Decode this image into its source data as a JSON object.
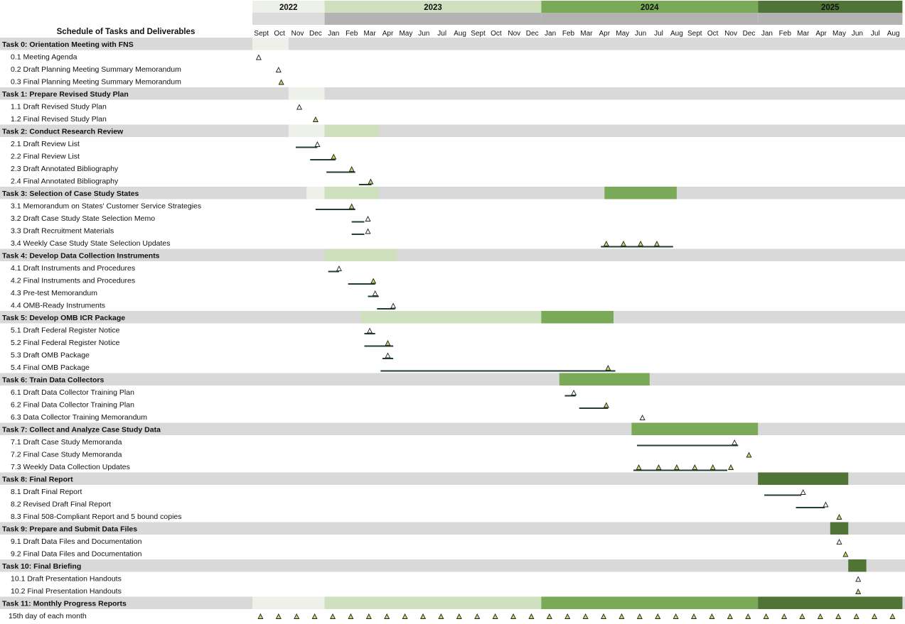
{
  "chart_data": {
    "type": "gantt",
    "title": "Schedule of Tasks and Deliverables",
    "months": [
      "Sept",
      "Oct",
      "Nov",
      "Dec",
      "Jan",
      "Feb",
      "Mar",
      "Apr",
      "May",
      "Jun",
      "Jul",
      "Aug",
      "Sept",
      "Oct",
      "Nov",
      "Dec",
      "Jan",
      "Feb",
      "Mar",
      "Apr",
      "May",
      "Jun",
      "Jul",
      "Aug",
      "Sept",
      "Oct",
      "Nov",
      "Dec",
      "Jan",
      "Feb",
      "Mar",
      "Apr",
      "May",
      "Jun",
      "Jul",
      "Aug"
    ],
    "years": [
      {
        "label": "2022",
        "start": 0,
        "end": 4,
        "color": "#eef1ea"
      },
      {
        "label": "2023",
        "start": 4,
        "end": 16,
        "color": "#cfe0bf"
      },
      {
        "label": "2024",
        "start": 16,
        "end": 28,
        "color": "#7aaa58"
      },
      {
        "label": "2025",
        "start": 28,
        "end": 36,
        "color": "#4f7436"
      }
    ],
    "colors": {
      "row_gray": "#d9d9d9",
      "line": "#1f3d33",
      "milestone_filled": "#c9d66b",
      "milestone_open": "#ffffff"
    },
    "rows": [
      {
        "type": "task",
        "label": "Task 0: Orientation Meeting with FNS",
        "bars": [
          {
            "start": 0,
            "end": 2,
            "year": 0
          }
        ]
      },
      {
        "type": "sub",
        "label": "0.1 Meeting Agenda",
        "milestones": [
          {
            "at": 0.35,
            "filled": false
          }
        ]
      },
      {
        "type": "sub",
        "label": "0.2 Draft Planning Meeting Summary Memorandum",
        "milestones": [
          {
            "at": 1.45,
            "filled": false
          }
        ]
      },
      {
        "type": "sub",
        "label": "0.3 Final Planning Meeting Summary Memorandum",
        "milestones": [
          {
            "at": 1.6,
            "filled": true
          }
        ]
      },
      {
        "type": "task",
        "label": "Task 1: Prepare Revised Study Plan",
        "bars": [
          {
            "start": 2,
            "end": 4,
            "year": 0
          }
        ]
      },
      {
        "type": "sub",
        "label": "1.1 Draft Revised Study Plan",
        "milestones": [
          {
            "at": 2.6,
            "filled": false
          }
        ]
      },
      {
        "type": "sub",
        "label": "1.2 Final Revised Study Plan",
        "milestones": [
          {
            "at": 3.5,
            "filled": true
          }
        ]
      },
      {
        "type": "task",
        "label": "Task 2: Conduct Research Review",
        "bars": [
          {
            "start": 2,
            "end": 4,
            "year": 0
          },
          {
            "start": 4,
            "end": 7,
            "year": 1
          }
        ]
      },
      {
        "type": "sub",
        "label": "2.1 Draft Review List",
        "line": [
          2.4,
          3.6
        ],
        "milestones": [
          {
            "at": 3.6,
            "filled": false
          }
        ]
      },
      {
        "type": "sub",
        "label": "2.2 Final Review List",
        "line": [
          3.2,
          4.6
        ],
        "milestones": [
          {
            "at": 4.5,
            "filled": true
          }
        ]
      },
      {
        "type": "sub",
        "label": "2.3 Draft Annotated Bibliography",
        "line": [
          4.1,
          5.7
        ],
        "milestones": [
          {
            "at": 5.5,
            "filled": true
          }
        ]
      },
      {
        "type": "sub",
        "label": "2.4 Final Annotated Bibliography",
        "line": [
          5.9,
          6.6
        ],
        "milestones": [
          {
            "at": 6.55,
            "filled": true
          }
        ]
      },
      {
        "type": "task",
        "label": "Task 3: Selection of Case Study States",
        "bars": [
          {
            "start": 3,
            "end": 4,
            "year": 0
          },
          {
            "start": 4,
            "end": 7,
            "year": 1
          },
          {
            "start": 19.5,
            "end": 23.5,
            "year": 2
          }
        ]
      },
      {
        "type": "sub",
        "label": "3.1 Memorandum on States' Customer Service Strategies",
        "line": [
          3.5,
          5.7
        ],
        "milestones": [
          {
            "at": 5.5,
            "filled": true
          }
        ]
      },
      {
        "type": "sub",
        "label": "3.2 Draft Case Study State Selection Memo",
        "line": [
          5.5,
          6.2
        ],
        "milestones": [
          {
            "at": 6.4,
            "filled": false
          }
        ]
      },
      {
        "type": "sub",
        "label": "3.3 Draft Recruitment Materials",
        "line": [
          5.5,
          6.2
        ],
        "milestones": [
          {
            "at": 6.4,
            "filled": false
          }
        ]
      },
      {
        "type": "sub",
        "label": "3.4 Weekly Case Study State Selection Updates",
        "line": [
          19.3,
          23.3
        ],
        "milestones": [
          {
            "at": 19.6,
            "filled": true
          },
          {
            "at": 20.55,
            "filled": true
          },
          {
            "at": 21.5,
            "filled": true
          },
          {
            "at": 22.4,
            "filled": true
          }
        ]
      },
      {
        "type": "task",
        "label": "Task 4: Develop Data Collection Instruments",
        "bars": [
          {
            "start": 4,
            "end": 8,
            "year": 1
          }
        ]
      },
      {
        "type": "sub",
        "label": "4.1 Draft Instruments and Procedures",
        "line": [
          4.2,
          4.8
        ],
        "milestones": [
          {
            "at": 4.8,
            "filled": false
          }
        ]
      },
      {
        "type": "sub",
        "label": "4.2 Final Instruments and Procedures",
        "line": [
          5.3,
          6.8
        ],
        "milestones": [
          {
            "at": 6.7,
            "filled": true
          }
        ]
      },
      {
        "type": "sub",
        "label": "4.3 Pre-test Memorandum",
        "line": [
          6.4,
          7.0
        ],
        "milestones": [
          {
            "at": 6.8,
            "filled": false
          }
        ]
      },
      {
        "type": "sub",
        "label": "4.4 OMB-Ready Instruments",
        "line": [
          6.9,
          7.9
        ],
        "milestones": [
          {
            "at": 7.8,
            "filled": false
          }
        ]
      },
      {
        "type": "task",
        "label": "Task 5: Develop OMB ICR Package",
        "bars": [
          {
            "start": 6,
            "end": 16,
            "year": 1
          },
          {
            "start": 16,
            "end": 20,
            "year": 2
          }
        ]
      },
      {
        "type": "sub",
        "label": "5.1 Draft Federal Register Notice",
        "line": [
          6.2,
          6.8
        ],
        "milestones": [
          {
            "at": 6.5,
            "filled": false
          }
        ]
      },
      {
        "type": "sub",
        "label": "5.2 Final Federal Register Notice",
        "line": [
          6.2,
          7.8
        ],
        "milestones": [
          {
            "at": 7.5,
            "filled": true
          }
        ]
      },
      {
        "type": "sub",
        "label": "5.3 Draft OMB Package",
        "line": [
          7.2,
          7.8
        ],
        "milestones": [
          {
            "at": 7.5,
            "filled": false
          }
        ]
      },
      {
        "type": "sub",
        "label": "5.4 Final OMB Package",
        "line": [
          7.1,
          20.1
        ],
        "milestones": [
          {
            "at": 19.7,
            "filled": true
          }
        ]
      },
      {
        "type": "task",
        "label": "Task 6: Train Data Collectors",
        "bars": [
          {
            "start": 17,
            "end": 22,
            "year": 2
          }
        ]
      },
      {
        "type": "sub",
        "label": "6.1 Draft Data Collector Training Plan",
        "line": [
          17.3,
          17.9
        ],
        "milestones": [
          {
            "at": 17.8,
            "filled": false
          }
        ]
      },
      {
        "type": "sub",
        "label": "6.2 Final Data Collector Training Plan",
        "line": [
          18.1,
          19.7
        ],
        "milestones": [
          {
            "at": 19.6,
            "filled": true
          }
        ]
      },
      {
        "type": "sub",
        "label": "6.3 Data Collector Training Memorandum",
        "milestones": [
          {
            "at": 21.6,
            "filled": false
          }
        ]
      },
      {
        "type": "task",
        "label": "Task 7: Collect and Analyze Case Study Data",
        "bars": [
          {
            "start": 21,
            "end": 28,
            "year": 2
          }
        ]
      },
      {
        "type": "sub",
        "label": "7.1 Draft Case Study Memoranda",
        "line": [
          21.3,
          26.9
        ],
        "milestones": [
          {
            "at": 26.7,
            "filled": false
          }
        ]
      },
      {
        "type": "sub",
        "label": "7.2 Final Case Study Memoranda",
        "milestones": [
          {
            "at": 27.5,
            "filled": true
          }
        ]
      },
      {
        "type": "sub",
        "label": "7.3 Weekly Data Collection Updates",
        "line": [
          21.1,
          26.3
        ],
        "milestones": [
          {
            "at": 21.4,
            "filled": true
          },
          {
            "at": 22.5,
            "filled": true
          },
          {
            "at": 23.5,
            "filled": true
          },
          {
            "at": 24.5,
            "filled": true
          },
          {
            "at": 25.5,
            "filled": true
          },
          {
            "at": 26.5,
            "filled": true
          }
        ]
      },
      {
        "type": "task",
        "label": "Task 8: Final Report",
        "bars": [
          {
            "start": 28,
            "end": 33,
            "year": 3
          }
        ]
      },
      {
        "type": "sub",
        "label": "8.1 Draft Final Report",
        "line": [
          28.35,
          30.4
        ],
        "milestones": [
          {
            "at": 30.5,
            "filled": false
          }
        ]
      },
      {
        "type": "sub",
        "label": "8.2 Revised Draft Final Report",
        "line": [
          30.1,
          31.7
        ],
        "milestones": [
          {
            "at": 31.75,
            "filled": false
          }
        ]
      },
      {
        "type": "sub",
        "label": "8.3 Final 508-Compliant Report and 5 bound copies",
        "milestones": [
          {
            "at": 32.5,
            "filled": true
          }
        ]
      },
      {
        "type": "task",
        "label": "Task 9: Prepare and Submit Data Files",
        "bars": [
          {
            "start": 32,
            "end": 33,
            "year": 3
          }
        ]
      },
      {
        "type": "sub",
        "label": "9.1 Draft Data Files and Documentation",
        "milestones": [
          {
            "at": 32.5,
            "filled": false
          }
        ]
      },
      {
        "type": "sub",
        "label": "9.2 Final Data Files and Documentation",
        "milestones": [
          {
            "at": 32.85,
            "filled": true
          }
        ]
      },
      {
        "type": "task",
        "label": "Task 10: Final Briefing",
        "bars": [
          {
            "start": 33,
            "end": 34,
            "year": 3
          }
        ]
      },
      {
        "type": "sub",
        "label": "10.1 Draft Presentation Handouts",
        "milestones": [
          {
            "at": 33.55,
            "filled": false
          }
        ]
      },
      {
        "type": "sub",
        "label": "10.2 Final Presentation Handouts",
        "milestones": [
          {
            "at": 33.55,
            "filled": true
          }
        ]
      },
      {
        "type": "task",
        "label": "Task 11: Monthly Progress Reports",
        "bars": [
          {
            "start": 0,
            "end": 4,
            "year": 0
          },
          {
            "start": 4,
            "end": 16,
            "year": 1
          },
          {
            "start": 16,
            "end": 28,
            "year": 2
          },
          {
            "start": 28,
            "end": 36,
            "year": 3
          }
        ]
      },
      {
        "type": "sub",
        "label": "15th day of each month",
        "monthly": true
      }
    ]
  }
}
